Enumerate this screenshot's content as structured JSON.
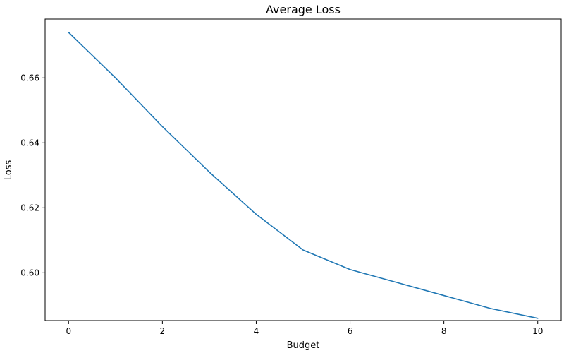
{
  "chart_data": {
    "type": "line",
    "title": "Average Loss",
    "xlabel": "Budget",
    "ylabel": "Loss",
    "xlim": [
      -0.5,
      10.5
    ],
    "ylim": [
      0.5853,
      0.6781
    ],
    "xticks": [
      0,
      2,
      4,
      6,
      8,
      10
    ],
    "xtick_labels": [
      "0",
      "2",
      "4",
      "6",
      "8",
      "10"
    ],
    "yticks": [
      0.6,
      0.62,
      0.64,
      0.66
    ],
    "ytick_labels": [
      "0.60",
      "0.62",
      "0.64",
      "0.66"
    ],
    "grid": false,
    "legend": "none",
    "series": [
      {
        "color": "#1f77b4",
        "x": [
          0,
          1,
          2,
          3,
          4,
          5,
          6,
          7,
          8,
          9,
          10
        ],
        "y": [
          0.674,
          0.66,
          0.645,
          0.631,
          0.618,
          0.607,
          0.601,
          0.597,
          0.593,
          0.589,
          0.586
        ]
      }
    ]
  }
}
